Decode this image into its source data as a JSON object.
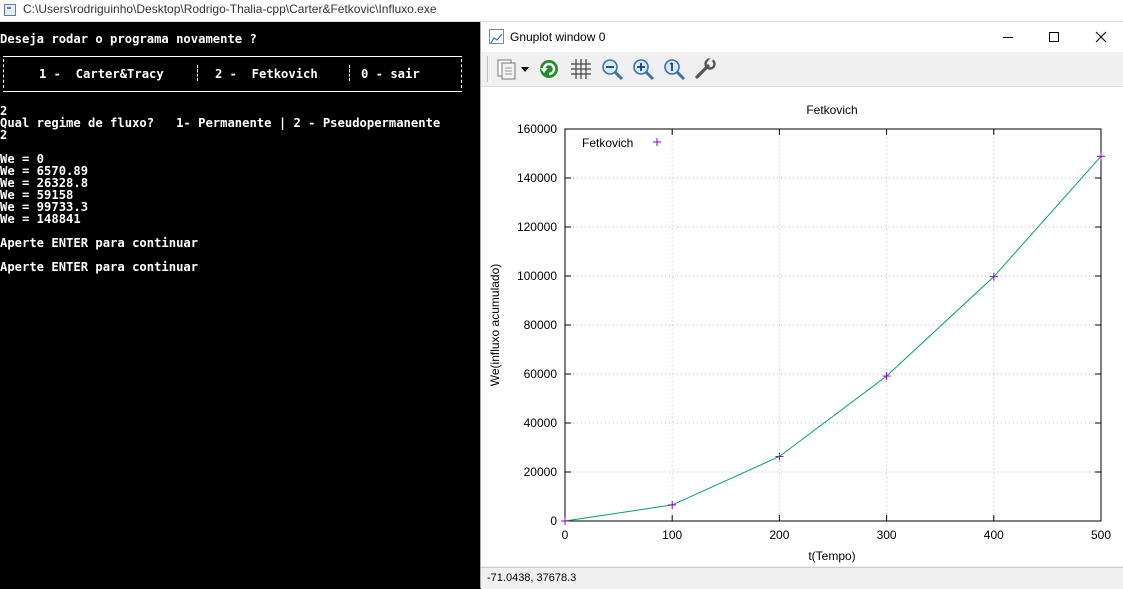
{
  "console": {
    "title": "C:\\Users\\rodriguinho\\Desktop\\Rodrigo-Thalia-cpp\\Carter&Fetkovic\\Influxo.exe",
    "prompt_again": "Deseja rodar o programa novamente ?",
    "menu": {
      "opt1": "1 -  Carter&Tracy",
      "opt2": "2 -  Fetkovich",
      "opt0": "0 - sair"
    },
    "input1": "2",
    "flow_prompt": "Qual regime de fluxo?   1- Permanente | 2 - Pseudopermanente",
    "input2": "2",
    "results": [
      "We = 0",
      "We = 6570.89",
      "We = 26328.8",
      "We = 59158",
      "We = 99733.3",
      "We = 148841"
    ],
    "continue1": "Aperte ENTER para continuar",
    "continue2": "Aperte ENTER para continuar"
  },
  "gnuplot": {
    "title": "Gnuplot window 0",
    "status": "-71.0438,  37678.3",
    "toolbar": [
      "copy-icon",
      "dropdown-arrow-icon",
      "replot-icon",
      "grid-icon",
      "zoom-out-icon",
      "zoom-in-icon",
      "zoom-reset-icon",
      "settings-wrench-icon"
    ]
  },
  "chart_data": {
    "type": "line",
    "title": "Fetkovich",
    "xlabel": "t(Tempo)",
    "ylabel": "We(influxo acumulado)",
    "x": [
      0,
      100,
      200,
      300,
      400,
      500
    ],
    "series": [
      {
        "name": "Fetkovich",
        "values": [
          0,
          6570.89,
          26328.8,
          59158,
          99733.3,
          148841
        ],
        "color": "#009e73",
        "marker_color": "#9400d3"
      }
    ],
    "xlim": [
      0,
      500
    ],
    "ylim": [
      0,
      160000
    ],
    "xticks": [
      0,
      100,
      200,
      300,
      400,
      500
    ],
    "yticks": [
      0,
      20000,
      40000,
      60000,
      80000,
      100000,
      120000,
      140000,
      160000
    ],
    "grid": true,
    "legend": "top-left"
  }
}
